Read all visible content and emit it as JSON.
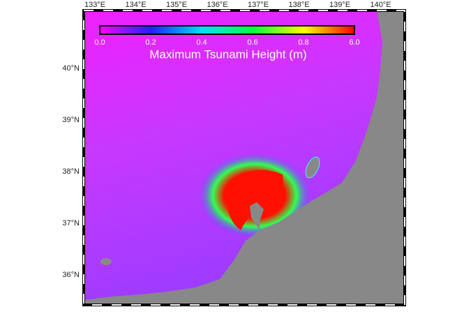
{
  "map": {
    "colorbar": {
      "title": "Maximum Tsunami Height (m)",
      "ticks": [
        "0.0",
        "0.2",
        "0.4",
        "0.6",
        "0.8",
        "6.0"
      ]
    },
    "lon_ticks": [
      "133°E",
      "134°E",
      "135°E",
      "136°E",
      "137°E",
      "138°E",
      "139°E",
      "140°E"
    ],
    "lat_ticks": [
      "40°N",
      "39°N",
      "38°N",
      "37°N",
      "36°N"
    ]
  }
}
